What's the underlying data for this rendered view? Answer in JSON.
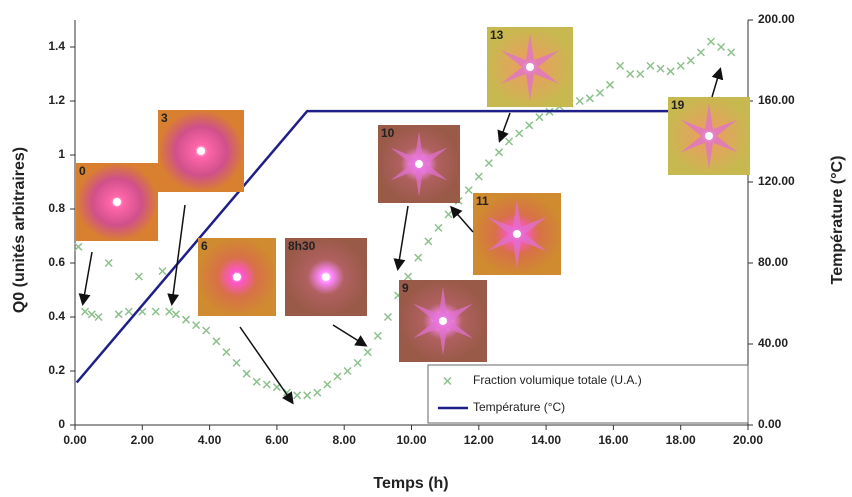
{
  "chart_data": {
    "type": "scatter",
    "xlabel": "Temps (h)",
    "ylabel": "Q0 (unités arbitraires)",
    "y2label": "Température (°C)",
    "xlim": [
      0,
      20
    ],
    "ylim": [
      0,
      1.5
    ],
    "y2lim": [
      0,
      200
    ],
    "xticks": [
      {
        "value": 0,
        "label": "0.00"
      },
      {
        "value": 2,
        "label": "2.00"
      },
      {
        "value": 4,
        "label": "4.00"
      },
      {
        "value": 6,
        "label": "6.00"
      },
      {
        "value": 8,
        "label": "8.00"
      },
      {
        "value": 10,
        "label": "10.00"
      },
      {
        "value": 12,
        "label": "12.00"
      },
      {
        "value": 14,
        "label": "14.00"
      },
      {
        "value": 16,
        "label": "16.00"
      },
      {
        "value": 18,
        "label": "18.00"
      },
      {
        "value": 20,
        "label": "20.00"
      }
    ],
    "yticks": [
      0,
      0.2,
      0.4,
      0.6,
      0.8,
      1,
      1.2,
      1.4
    ],
    "y2ticks": [
      {
        "value": 0,
        "label": "0.00"
      },
      {
        "value": 40,
        "label": "40.00"
      },
      {
        "value": 80,
        "label": "80.00"
      },
      {
        "value": 120,
        "label": "120.00"
      },
      {
        "value": 160,
        "label": "160.00"
      },
      {
        "value": 200,
        "label": "200.00"
      }
    ],
    "grid": false,
    "legend": "lower right",
    "series": [
      {
        "name": "Fraction volumique totale (U.A.)",
        "color": "#8cc08c",
        "marker": "x",
        "x": [
          0.1,
          1.0,
          1.9,
          2.6,
          0.3,
          0.5,
          0.7,
          1.3,
          1.6,
          2.0,
          2.4,
          2.8,
          3.0,
          3.3,
          3.6,
          3.9,
          4.2,
          4.5,
          4.8,
          5.1,
          5.4,
          5.7,
          6.0,
          6.3,
          6.6,
          6.9,
          7.2,
          7.5,
          7.8,
          8.1,
          8.4,
          8.7,
          9.0,
          9.3,
          9.6,
          9.9,
          10.2,
          10.5,
          10.8,
          11.1,
          11.4,
          11.7,
          12.0,
          12.3,
          12.6,
          12.9,
          13.2,
          13.5,
          13.8,
          14.1,
          14.4,
          14.7,
          15.0,
          15.3,
          15.6,
          15.9,
          16.2,
          16.5,
          16.8,
          17.1,
          17.4,
          17.7,
          18.0,
          18.3,
          18.6,
          18.9,
          19.2,
          19.5
        ],
        "values": [
          0.66,
          0.6,
          0.55,
          0.57,
          0.42,
          0.41,
          0.4,
          0.41,
          0.42,
          0.42,
          0.42,
          0.42,
          0.41,
          0.39,
          0.37,
          0.35,
          0.31,
          0.27,
          0.23,
          0.19,
          0.16,
          0.15,
          0.14,
          0.12,
          0.11,
          0.11,
          0.12,
          0.15,
          0.18,
          0.2,
          0.23,
          0.27,
          0.33,
          0.4,
          0.48,
          0.55,
          0.62,
          0.68,
          0.73,
          0.78,
          0.83,
          0.87,
          0.92,
          0.97,
          1.01,
          1.05,
          1.08,
          1.11,
          1.14,
          1.16,
          1.18,
          1.19,
          1.2,
          1.21,
          1.23,
          1.26,
          1.33,
          1.3,
          1.3,
          1.33,
          1.32,
          1.31,
          1.33,
          1.35,
          1.38,
          1.42,
          1.4,
          1.38
        ]
      },
      {
        "name": "Température (°C)",
        "color": "#1f1f8a",
        "axis": "y2",
        "marker": "line",
        "x": [
          0.05,
          6.9,
          19.5
        ],
        "values": [
          21,
          155,
          155
        ]
      }
    ],
    "annotations": [
      "0",
      "3",
      "6",
      "8h30",
      "9",
      "10",
      "11",
      "13",
      "19"
    ]
  }
}
